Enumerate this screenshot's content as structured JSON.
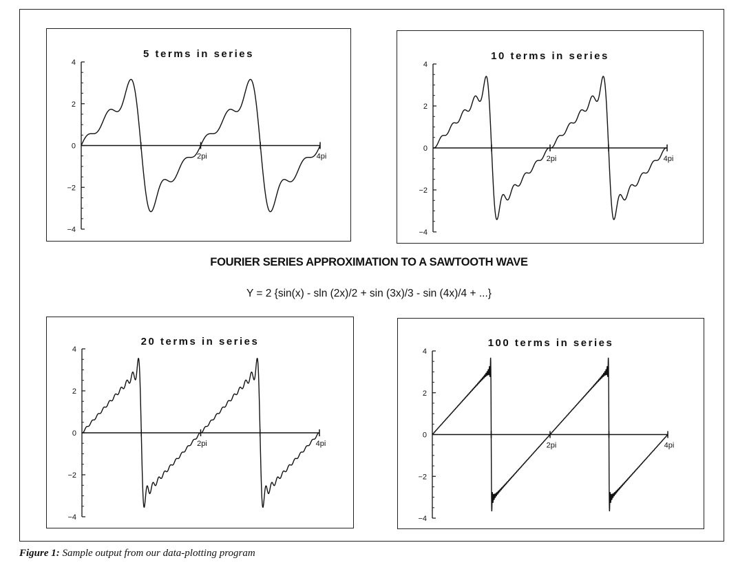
{
  "main_title": "FOURIER SERIES APPROXIMATION TO A SAWTOOTH WAVE",
  "formula": "Y = 2 {sin(x) - sln (2x)/2 + sin (3x)/3 - sin (4x)/4 + ...}",
  "caption": {
    "label": "Figure 1:",
    "text": "Sample output from our data-plotting program"
  },
  "chart_data": [
    {
      "type": "line",
      "title": "5 terms in series",
      "terms": 5,
      "x_range": [
        0,
        12.566
      ],
      "ylim": [
        -4,
        4
      ],
      "y_ticks": [
        4,
        2,
        0,
        -2,
        -4
      ],
      "y_tick_labels": [
        "4",
        "2",
        "0",
        "−2",
        "−4"
      ],
      "x_ticks": [
        6.2832,
        12.5664
      ],
      "x_tick_labels": [
        "2pi",
        "4pi"
      ],
      "line_color": "#111111"
    },
    {
      "type": "line",
      "title": "10 terms in series",
      "terms": 10,
      "x_range": [
        0,
        12.566
      ],
      "ylim": [
        -4,
        4
      ],
      "y_ticks": [
        4,
        2,
        0,
        -2,
        -4
      ],
      "y_tick_labels": [
        "4",
        "2",
        "0",
        "−2",
        "−4"
      ],
      "x_ticks": [
        6.2832,
        12.5664
      ],
      "x_tick_labels": [
        "2pi",
        "4pi"
      ],
      "line_color": "#111111"
    },
    {
      "type": "line",
      "title": "20 terms in series",
      "terms": 20,
      "x_range": [
        0,
        12.566
      ],
      "ylim": [
        -4,
        4
      ],
      "y_ticks": [
        4,
        2,
        0,
        -2,
        -4
      ],
      "y_tick_labels": [
        "4",
        "2",
        "0",
        "−2",
        "−4"
      ],
      "x_ticks": [
        6.2832,
        12.5664
      ],
      "x_tick_labels": [
        "2pi",
        "4pi"
      ],
      "line_color": "#111111"
    },
    {
      "type": "line",
      "title": "100 terms in series",
      "terms": 100,
      "x_range": [
        0,
        12.566
      ],
      "ylim": [
        -4,
        4
      ],
      "y_ticks": [
        4,
        2,
        0,
        -2,
        -4
      ],
      "y_tick_labels": [
        "4",
        "2",
        "0",
        "−2",
        "−4"
      ],
      "x_ticks": [
        6.2832,
        12.5664
      ],
      "x_tick_labels": [
        "2pi",
        "4pi"
      ],
      "line_color": "#111111"
    }
  ]
}
